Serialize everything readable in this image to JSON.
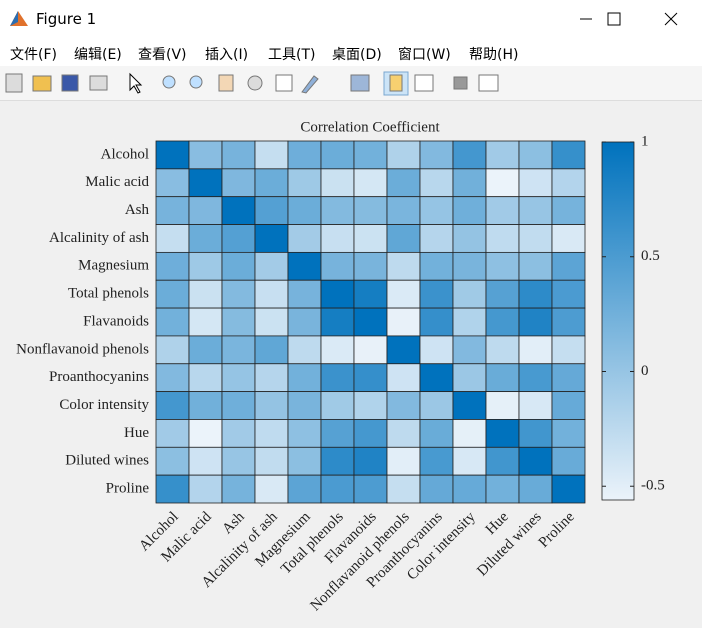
{
  "window": {
    "title": "Figure 1",
    "menu": [
      "文件(F)",
      "编辑(E)",
      "查看(V)",
      "插入(I)",
      "工具(T)",
      "桌面(D)",
      "窗口(W)",
      "帮助(H)"
    ]
  },
  "chart_data": {
    "type": "heatmap",
    "title": "Correlation Coefficient",
    "categories": [
      "Alcohol",
      "Malic acid",
      "Ash",
      "Alcalinity of ash",
      "Magnesium",
      "Total phenols",
      "Flavanoids",
      "Nonflavanoid phenols",
      "Proanthocyanins",
      "Color intensity",
      "Hue",
      "Diluted wines",
      "Proline"
    ],
    "values": [
      [
        1,
        0.09,
        0.21,
        -0.31,
        0.27,
        0.29,
        0.24,
        -0.16,
        0.14,
        0.55,
        -0.07,
        0.07,
        0.64
      ],
      [
        0.09,
        1,
        0.16,
        0.29,
        -0.05,
        -0.34,
        -0.41,
        0.29,
        -0.22,
        0.25,
        -0.56,
        -0.37,
        -0.19
      ],
      [
        0.21,
        0.16,
        1,
        0.44,
        0.29,
        0.13,
        0.12,
        0.19,
        0.01,
        0.26,
        -0.07,
        0,
        0.22
      ],
      [
        -0.31,
        0.29,
        0.44,
        1,
        -0.08,
        -0.32,
        -0.35,
        0.36,
        -0.2,
        0.02,
        -0.27,
        -0.28,
        -0.44
      ],
      [
        0.27,
        -0.05,
        0.29,
        -0.08,
        1,
        0.21,
        0.2,
        -0.26,
        0.24,
        0.2,
        0.06,
        0.07,
        0.39
      ],
      [
        0.29,
        -0.34,
        0.13,
        -0.32,
        0.21,
        1,
        0.86,
        -0.45,
        0.61,
        -0.06,
        0.43,
        0.7,
        0.5
      ],
      [
        0.24,
        -0.41,
        0.12,
        -0.35,
        0.2,
        0.86,
        1,
        -0.54,
        0.65,
        -0.17,
        0.54,
        0.79,
        0.49
      ],
      [
        -0.16,
        0.29,
        0.19,
        0.36,
        -0.26,
        -0.45,
        -0.54,
        1,
        -0.37,
        0.14,
        -0.26,
        -0.5,
        -0.31
      ],
      [
        0.14,
        -0.22,
        0.01,
        -0.2,
        0.24,
        0.61,
        0.65,
        -0.37,
        1,
        -0.03,
        0.3,
        0.52,
        0.33
      ],
      [
        0.55,
        0.25,
        0.26,
        0.02,
        0.2,
        -0.06,
        -0.17,
        0.14,
        -0.03,
        1,
        -0.52,
        -0.43,
        0.32
      ],
      [
        -0.07,
        -0.56,
        -0.07,
        -0.27,
        0.06,
        0.43,
        0.54,
        -0.26,
        0.3,
        -0.52,
        1,
        0.57,
        0.24
      ],
      [
        0.07,
        -0.37,
        0,
        -0.28,
        0.07,
        0.7,
        0.79,
        -0.5,
        0.52,
        -0.43,
        0.57,
        1,
        0.31
      ],
      [
        0.64,
        -0.19,
        0.22,
        -0.44,
        0.39,
        0.5,
        0.49,
        -0.31,
        0.33,
        0.32,
        0.24,
        0.31,
        1
      ]
    ],
    "clim": [
      -0.56,
      1
    ],
    "cticks": [
      -0.5,
      0,
      0.5,
      1
    ],
    "colormap": [
      "#ebf3fa",
      "#0072bd"
    ]
  }
}
